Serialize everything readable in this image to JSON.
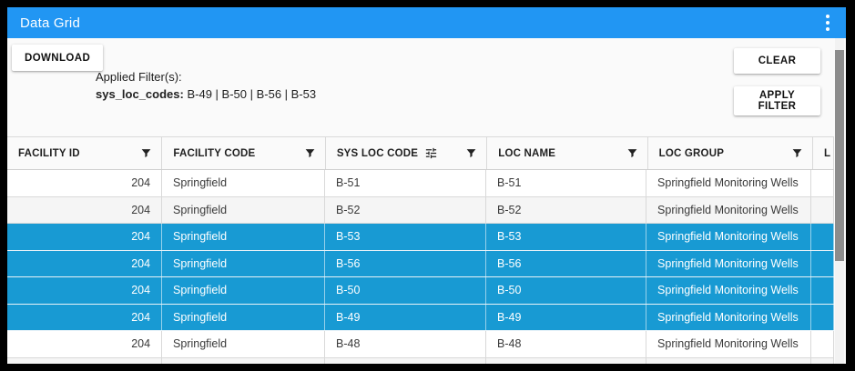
{
  "window": {
    "title": "Data Grid"
  },
  "toolbar": {
    "download": "DOWNLOAD",
    "clear": "CLEAR",
    "apply_filter": "APPLY FILTER"
  },
  "filters": {
    "applied_label": "Applied Filter(s):",
    "name": "sys_loc_codes:",
    "value": "B-49 | B-50 | B-56 | B-53"
  },
  "colors": {
    "titlebar_blue": "#2196f3",
    "selection_blue": "#189ad3",
    "row_stripe": "#f5f5f5",
    "grid_border": "#d9d9d9"
  },
  "icons": {
    "titlebar_menu": "kebab-menu-icon",
    "column_filter": "filter-funnel-icon",
    "column_filter_active": "tune-icon"
  },
  "table": {
    "columns": [
      {
        "label": "FACILITY ID",
        "align": "right",
        "tune": false
      },
      {
        "label": "FACILITY CODE",
        "align": "left",
        "tune": false
      },
      {
        "label": "SYS LOC CODE",
        "align": "left",
        "tune": true
      },
      {
        "label": "LOC NAME",
        "align": "left",
        "tune": false
      },
      {
        "label": "LOC GROUP",
        "align": "left",
        "tune": false
      },
      {
        "label": "L",
        "align": "left",
        "tune": false
      }
    ],
    "rows": [
      {
        "selected": false,
        "cells": [
          "204",
          "Springfield",
          "B-51",
          "B-51",
          "Springfield Monitoring Wells",
          ""
        ]
      },
      {
        "selected": false,
        "cells": [
          "204",
          "Springfield",
          "B-52",
          "B-52",
          "Springfield Monitoring Wells",
          ""
        ]
      },
      {
        "selected": true,
        "cells": [
          "204",
          "Springfield",
          "B-53",
          "B-53",
          "Springfield Monitoring Wells",
          ""
        ]
      },
      {
        "selected": true,
        "cells": [
          "204",
          "Springfield",
          "B-56",
          "B-56",
          "Springfield Monitoring Wells",
          ""
        ]
      },
      {
        "selected": true,
        "cells": [
          "204",
          "Springfield",
          "B-50",
          "B-50",
          "Springfield Monitoring Wells",
          ""
        ]
      },
      {
        "selected": true,
        "cells": [
          "204",
          "Springfield",
          "B-49",
          "B-49",
          "Springfield Monitoring Wells",
          ""
        ]
      },
      {
        "selected": false,
        "cells": [
          "204",
          "Springfield",
          "B-48",
          "B-48",
          "Springfield Monitoring Wells",
          ""
        ]
      },
      {
        "selected": false,
        "cells": [
          "",
          "",
          "",
          "",
          "",
          ""
        ]
      }
    ]
  }
}
